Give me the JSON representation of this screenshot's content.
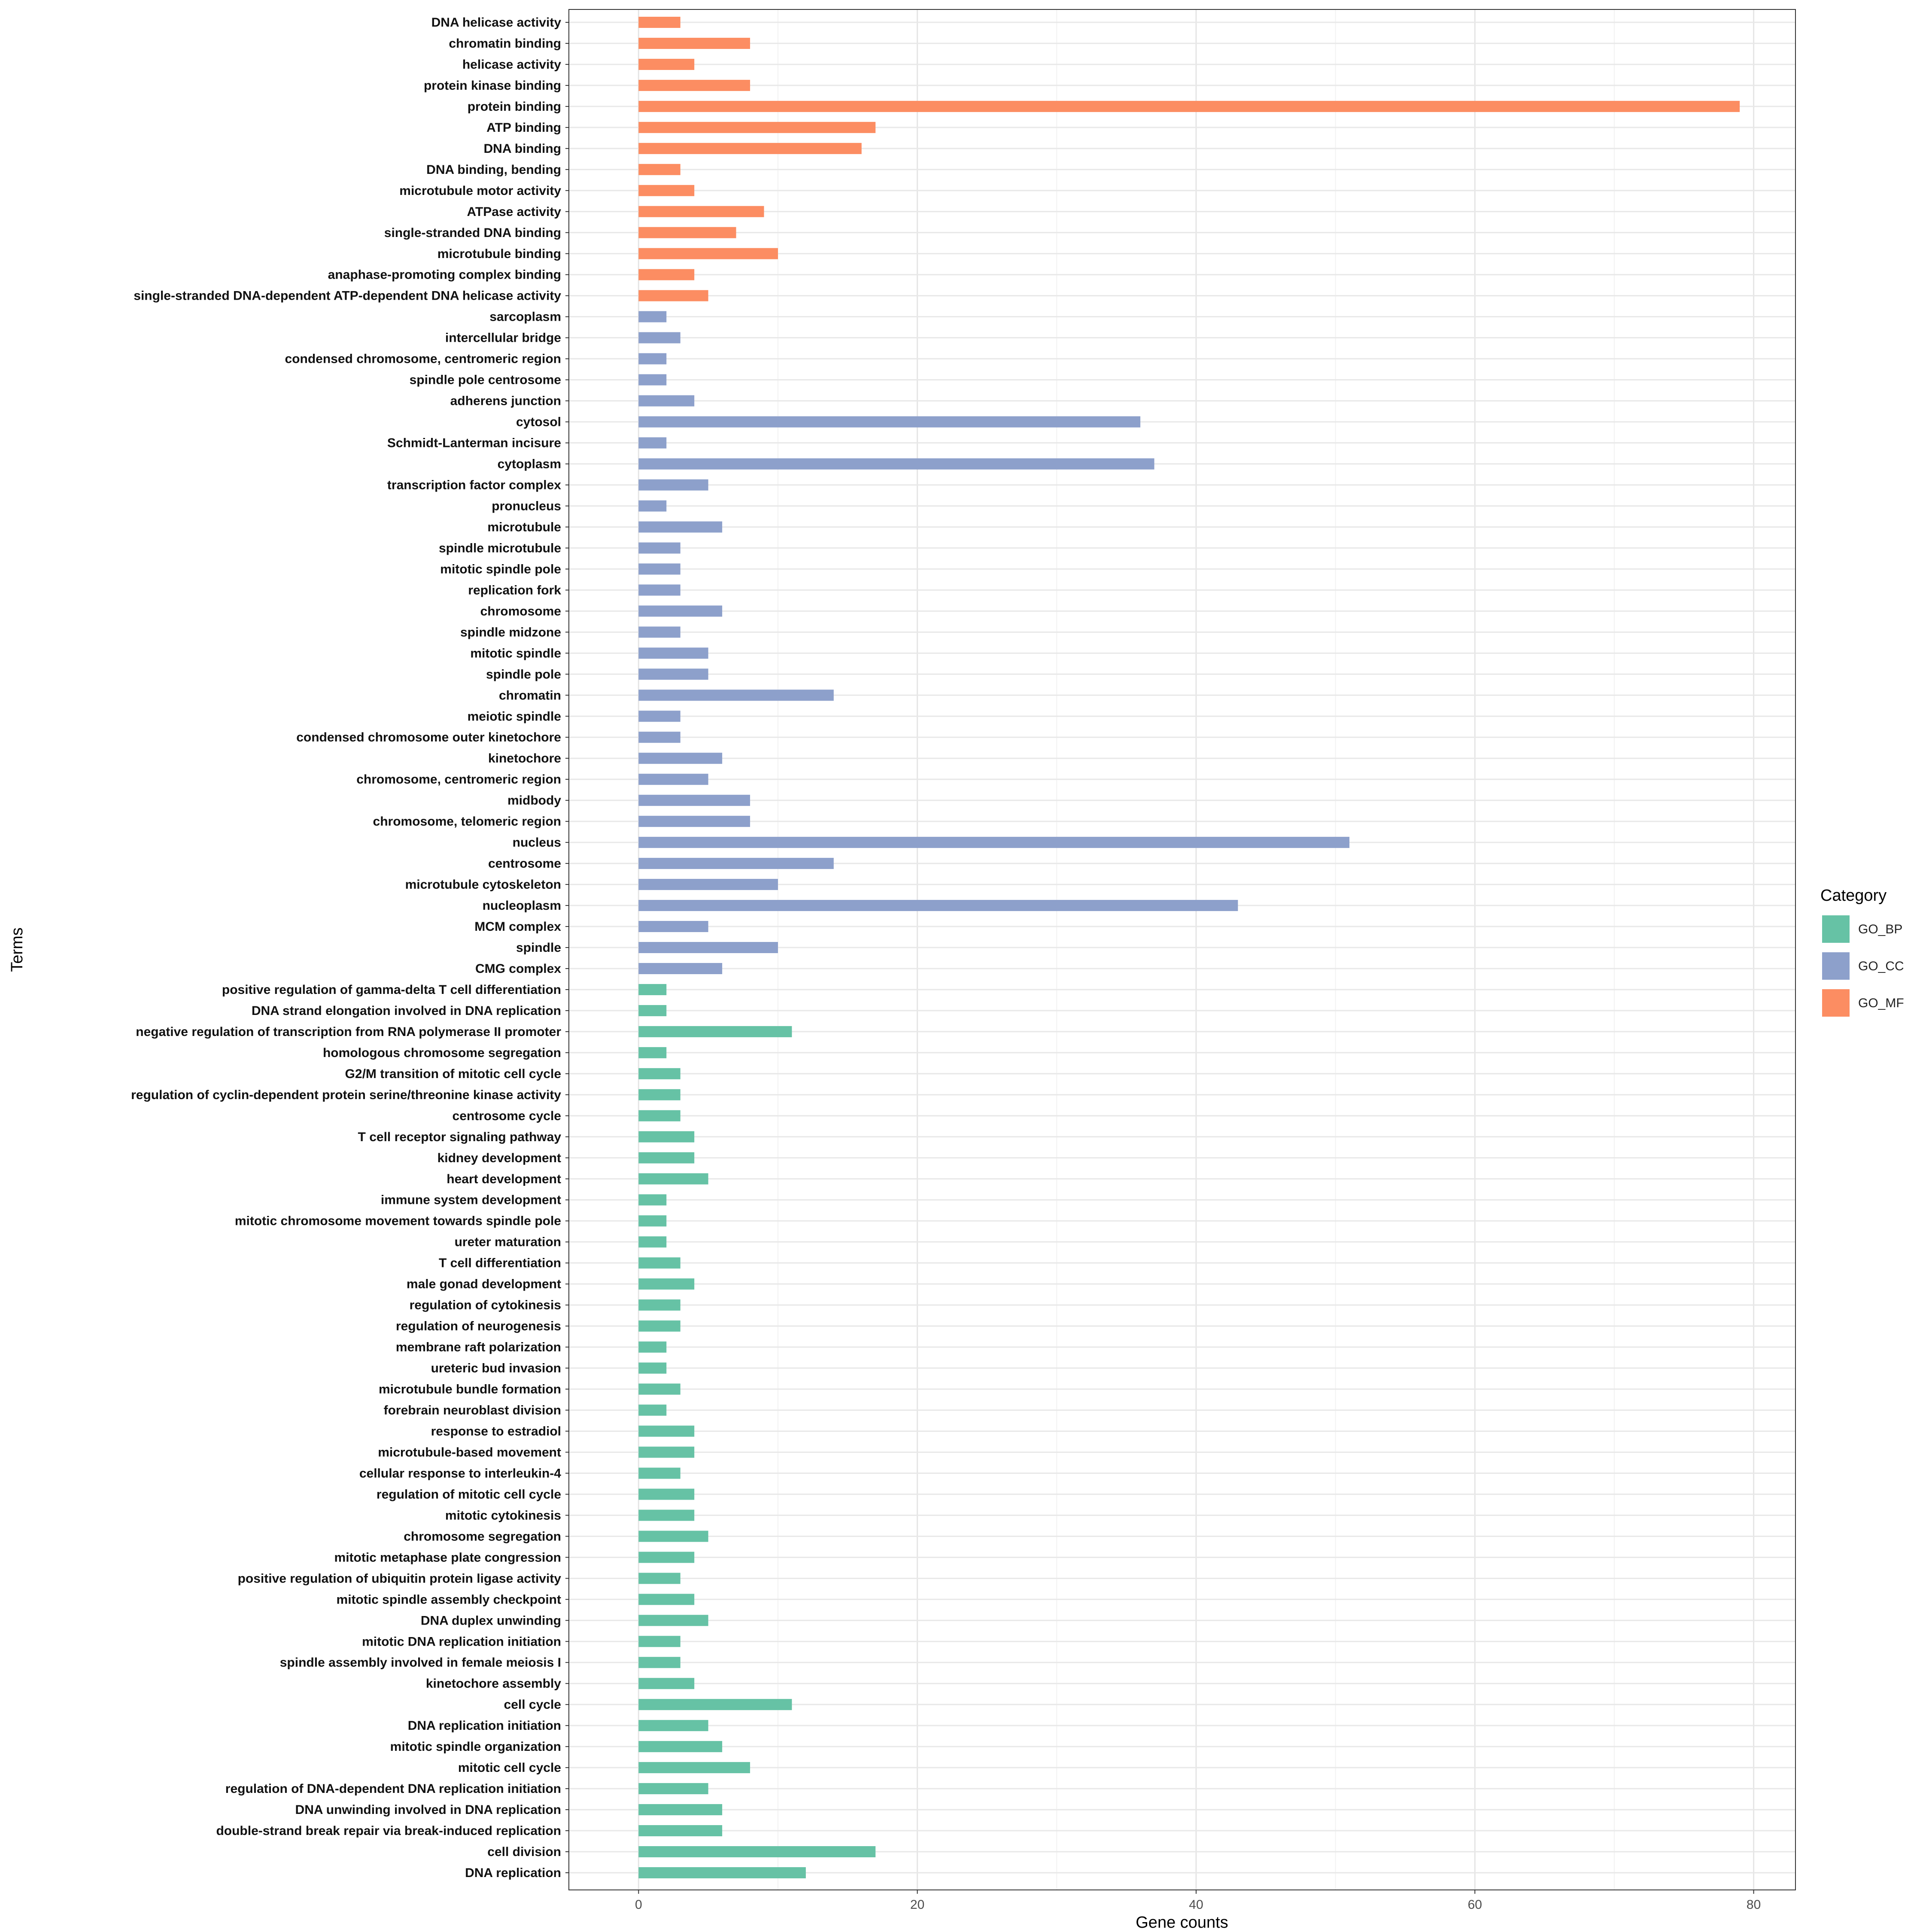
{
  "chart_data": {
    "type": "bar",
    "orientation": "horizontal",
    "xlabel": "Gene counts",
    "ylabel": "Terms",
    "xlim": [
      -5.0,
      83.0
    ],
    "xticks": [
      0,
      20,
      40,
      60,
      80
    ],
    "grid": true,
    "legend": {
      "title": "Category",
      "position": "right",
      "entries": [
        {
          "name": "GO_BP",
          "color": "#66c2a5"
        },
        {
          "name": "GO_CC",
          "color": "#8da0cb"
        },
        {
          "name": "GO_MF",
          "color": "#fc8d62"
        }
      ]
    },
    "bars": [
      {
        "term": "DNA helicase activity",
        "value": 3,
        "category": "GO_MF"
      },
      {
        "term": "chromatin binding",
        "value": 8,
        "category": "GO_MF"
      },
      {
        "term": "helicase activity",
        "value": 4,
        "category": "GO_MF"
      },
      {
        "term": "protein kinase binding",
        "value": 8,
        "category": "GO_MF"
      },
      {
        "term": "protein binding",
        "value": 79,
        "category": "GO_MF"
      },
      {
        "term": "ATP binding",
        "value": 17,
        "category": "GO_MF"
      },
      {
        "term": "DNA binding",
        "value": 16,
        "category": "GO_MF"
      },
      {
        "term": "DNA binding, bending",
        "value": 3,
        "category": "GO_MF"
      },
      {
        "term": "microtubule motor activity",
        "value": 4,
        "category": "GO_MF"
      },
      {
        "term": "ATPase activity",
        "value": 9,
        "category": "GO_MF"
      },
      {
        "term": "single-stranded DNA binding",
        "value": 7,
        "category": "GO_MF"
      },
      {
        "term": "microtubule binding",
        "value": 10,
        "category": "GO_MF"
      },
      {
        "term": "anaphase-promoting complex binding",
        "value": 4,
        "category": "GO_MF"
      },
      {
        "term": "single-stranded DNA-dependent ATP-dependent DNA helicase activity",
        "value": 5,
        "category": "GO_MF"
      },
      {
        "term": "sarcoplasm",
        "value": 2,
        "category": "GO_CC"
      },
      {
        "term": "intercellular bridge",
        "value": 3,
        "category": "GO_CC"
      },
      {
        "term": "condensed chromosome, centromeric region",
        "value": 2,
        "category": "GO_CC"
      },
      {
        "term": "spindle pole centrosome",
        "value": 2,
        "category": "GO_CC"
      },
      {
        "term": "adherens junction",
        "value": 4,
        "category": "GO_CC"
      },
      {
        "term": "cytosol",
        "value": 36,
        "category": "GO_CC"
      },
      {
        "term": "Schmidt-Lanterman incisure",
        "value": 2,
        "category": "GO_CC"
      },
      {
        "term": "cytoplasm",
        "value": 37,
        "category": "GO_CC"
      },
      {
        "term": "transcription factor complex",
        "value": 5,
        "category": "GO_CC"
      },
      {
        "term": "pronucleus",
        "value": 2,
        "category": "GO_CC"
      },
      {
        "term": "microtubule",
        "value": 6,
        "category": "GO_CC"
      },
      {
        "term": "spindle microtubule",
        "value": 3,
        "category": "GO_CC"
      },
      {
        "term": "mitotic spindle pole",
        "value": 3,
        "category": "GO_CC"
      },
      {
        "term": "replication fork",
        "value": 3,
        "category": "GO_CC"
      },
      {
        "term": "chromosome",
        "value": 6,
        "category": "GO_CC"
      },
      {
        "term": "spindle midzone",
        "value": 3,
        "category": "GO_CC"
      },
      {
        "term": "mitotic spindle",
        "value": 5,
        "category": "GO_CC"
      },
      {
        "term": "spindle pole",
        "value": 5,
        "category": "GO_CC"
      },
      {
        "term": "chromatin",
        "value": 14,
        "category": "GO_CC"
      },
      {
        "term": "meiotic spindle",
        "value": 3,
        "category": "GO_CC"
      },
      {
        "term": "condensed chromosome outer kinetochore",
        "value": 3,
        "category": "GO_CC"
      },
      {
        "term": "kinetochore",
        "value": 6,
        "category": "GO_CC"
      },
      {
        "term": "chromosome, centromeric region",
        "value": 5,
        "category": "GO_CC"
      },
      {
        "term": "midbody",
        "value": 8,
        "category": "GO_CC"
      },
      {
        "term": "chromosome, telomeric region",
        "value": 8,
        "category": "GO_CC"
      },
      {
        "term": "nucleus",
        "value": 51,
        "category": "GO_CC"
      },
      {
        "term": "centrosome",
        "value": 14,
        "category": "GO_CC"
      },
      {
        "term": "microtubule cytoskeleton",
        "value": 10,
        "category": "GO_CC"
      },
      {
        "term": "nucleoplasm",
        "value": 43,
        "category": "GO_CC"
      },
      {
        "term": "MCM complex",
        "value": 5,
        "category": "GO_CC"
      },
      {
        "term": "spindle",
        "value": 10,
        "category": "GO_CC"
      },
      {
        "term": "CMG complex",
        "value": 6,
        "category": "GO_CC"
      },
      {
        "term": "positive regulation of gamma-delta T cell differentiation",
        "value": 2,
        "category": "GO_BP"
      },
      {
        "term": "DNA strand elongation involved in DNA replication",
        "value": 2,
        "category": "GO_BP"
      },
      {
        "term": "negative regulation of transcription from RNA polymerase II promoter",
        "value": 11,
        "category": "GO_BP"
      },
      {
        "term": "homologous chromosome segregation",
        "value": 2,
        "category": "GO_BP"
      },
      {
        "term": "G2/M transition of mitotic cell cycle",
        "value": 3,
        "category": "GO_BP"
      },
      {
        "term": "regulation of cyclin-dependent protein serine/threonine kinase activity",
        "value": 3,
        "category": "GO_BP"
      },
      {
        "term": "centrosome cycle",
        "value": 3,
        "category": "GO_BP"
      },
      {
        "term": "T cell receptor signaling pathway",
        "value": 4,
        "category": "GO_BP"
      },
      {
        "term": "kidney development",
        "value": 4,
        "category": "GO_BP"
      },
      {
        "term": "heart development",
        "value": 5,
        "category": "GO_BP"
      },
      {
        "term": "immune system development",
        "value": 2,
        "category": "GO_BP"
      },
      {
        "term": "mitotic chromosome movement towards spindle pole",
        "value": 2,
        "category": "GO_BP"
      },
      {
        "term": "ureter maturation",
        "value": 2,
        "category": "GO_BP"
      },
      {
        "term": "T cell differentiation",
        "value": 3,
        "category": "GO_BP"
      },
      {
        "term": "male gonad development",
        "value": 4,
        "category": "GO_BP"
      },
      {
        "term": "regulation of cytokinesis",
        "value": 3,
        "category": "GO_BP"
      },
      {
        "term": "regulation of neurogenesis",
        "value": 3,
        "category": "GO_BP"
      },
      {
        "term": "membrane raft polarization",
        "value": 2,
        "category": "GO_BP"
      },
      {
        "term": "ureteric bud invasion",
        "value": 2,
        "category": "GO_BP"
      },
      {
        "term": "microtubule bundle formation",
        "value": 3,
        "category": "GO_BP"
      },
      {
        "term": "forebrain neuroblast division",
        "value": 2,
        "category": "GO_BP"
      },
      {
        "term": "response to estradiol",
        "value": 4,
        "category": "GO_BP"
      },
      {
        "term": "microtubule-based movement",
        "value": 4,
        "category": "GO_BP"
      },
      {
        "term": "cellular response to interleukin-4",
        "value": 3,
        "category": "GO_BP"
      },
      {
        "term": "regulation of mitotic cell cycle",
        "value": 4,
        "category": "GO_BP"
      },
      {
        "term": "mitotic cytokinesis",
        "value": 4,
        "category": "GO_BP"
      },
      {
        "term": "chromosome segregation",
        "value": 5,
        "category": "GO_BP"
      },
      {
        "term": "mitotic metaphase plate congression",
        "value": 4,
        "category": "GO_BP"
      },
      {
        "term": "positive regulation of ubiquitin protein ligase activity",
        "value": 3,
        "category": "GO_BP"
      },
      {
        "term": "mitotic spindle assembly checkpoint",
        "value": 4,
        "category": "GO_BP"
      },
      {
        "term": "DNA duplex unwinding",
        "value": 5,
        "category": "GO_BP"
      },
      {
        "term": "mitotic DNA replication initiation",
        "value": 3,
        "category": "GO_BP"
      },
      {
        "term": "spindle assembly involved in female meiosis I",
        "value": 3,
        "category": "GO_BP"
      },
      {
        "term": "kinetochore assembly",
        "value": 4,
        "category": "GO_BP"
      },
      {
        "term": "cell cycle",
        "value": 11,
        "category": "GO_BP"
      },
      {
        "term": "DNA replication initiation",
        "value": 5,
        "category": "GO_BP"
      },
      {
        "term": "mitotic spindle organization",
        "value": 6,
        "category": "GO_BP"
      },
      {
        "term": "mitotic cell cycle",
        "value": 8,
        "category": "GO_BP"
      },
      {
        "term": "regulation of DNA-dependent DNA replication initiation",
        "value": 5,
        "category": "GO_BP"
      },
      {
        "term": "DNA unwinding involved in DNA replication",
        "value": 6,
        "category": "GO_BP"
      },
      {
        "term": "double-strand break repair via break-induced replication",
        "value": 6,
        "category": "GO_BP"
      },
      {
        "term": "cell division",
        "value": 17,
        "category": "GO_BP"
      },
      {
        "term": "DNA replication",
        "value": 12,
        "category": "GO_BP"
      }
    ]
  }
}
